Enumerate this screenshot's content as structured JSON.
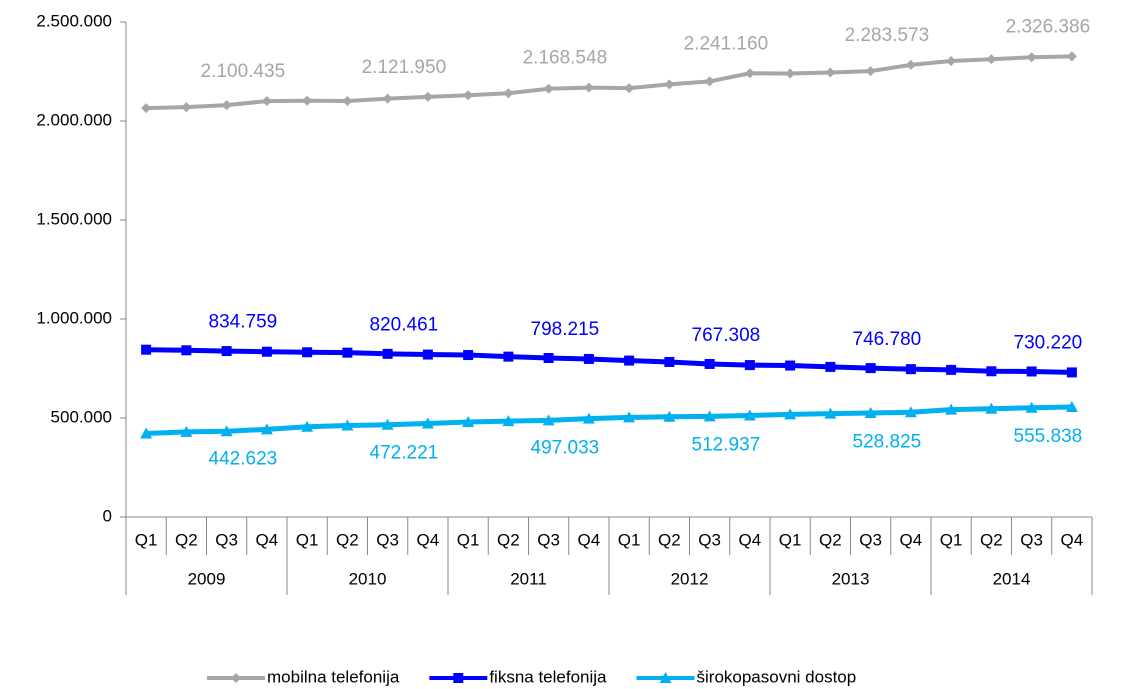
{
  "chart_data": {
    "type": "line",
    "categories": [
      "Q1",
      "Q2",
      "Q3",
      "Q4",
      "Q1",
      "Q2",
      "Q3",
      "Q4",
      "Q1",
      "Q2",
      "Q3",
      "Q4",
      "Q1",
      "Q2",
      "Q3",
      "Q4",
      "Q1",
      "Q2",
      "Q3",
      "Q4",
      "Q1",
      "Q2",
      "Q3",
      "Q4"
    ],
    "years": [
      "2009",
      "2010",
      "2011",
      "2012",
      "2013",
      "2014"
    ],
    "ylim": [
      0,
      2500000
    ],
    "yticks": [
      0,
      {
        "value": 500000,
        "label": "500.000"
      },
      {
        "value": 1000000,
        "label": "1.000.000"
      },
      {
        "value": 1500000,
        "label": "1.500.000"
      },
      {
        "value": 2000000,
        "label": "2.000.000"
      },
      {
        "value": 2500000,
        "label": "2.500.000"
      }
    ],
    "legend": "bottom",
    "series": [
      {
        "name": "mobilna telefonija",
        "color": "#a6a6a6",
        "marker": "diamond",
        "label_side": "above",
        "values": [
          2065000,
          2070000,
          2080000,
          2100435,
          2102000,
          2101000,
          2113000,
          2121950,
          2130000,
          2140000,
          2163000,
          2168548,
          2166000,
          2185000,
          2200000,
          2241160,
          2240000,
          2245000,
          2252000,
          2283573,
          2303000,
          2312000,
          2322000,
          2326386
        ],
        "value_labels": [
          null,
          null,
          null,
          "2.100.435",
          null,
          null,
          null,
          "2.121.950",
          null,
          null,
          null,
          "2.168.548",
          null,
          null,
          null,
          "2.241.160",
          null,
          null,
          null,
          "2.283.573",
          null,
          null,
          null,
          "2.326.386"
        ]
      },
      {
        "name": "fiksna telefonija",
        "color": "#0000ff",
        "marker": "square",
        "label_side": "above",
        "values": [
          845000,
          842000,
          838000,
          834759,
          832000,
          830000,
          824000,
          820461,
          818000,
          810000,
          803000,
          798215,
          790000,
          783000,
          773000,
          767308,
          765000,
          758000,
          752000,
          746780,
          743000,
          736000,
          735000,
          730220
        ],
        "value_labels": [
          null,
          null,
          null,
          "834.759",
          null,
          null,
          null,
          "820.461",
          null,
          null,
          null,
          "798.215",
          null,
          null,
          null,
          "767.308",
          null,
          null,
          null,
          "746.780",
          null,
          null,
          null,
          "730.220"
        ]
      },
      {
        "name": "širokopasovni dostop",
        "color": "#00b0f0",
        "marker": "triangle",
        "label_side": "below",
        "values": [
          422000,
          430000,
          433000,
          442623,
          456000,
          462000,
          466000,
          472221,
          480000,
          484000,
          488000,
          497033,
          503000,
          506000,
          508000,
          512937,
          518000,
          522000,
          525000,
          528825,
          542000,
          547000,
          552000,
          555838
        ],
        "value_labels": [
          null,
          null,
          null,
          "442.623",
          null,
          null,
          null,
          "472.221",
          null,
          null,
          null,
          "497.033",
          null,
          null,
          null,
          "512.937",
          null,
          null,
          null,
          "528.825",
          null,
          null,
          null,
          "555.838"
        ]
      }
    ]
  }
}
